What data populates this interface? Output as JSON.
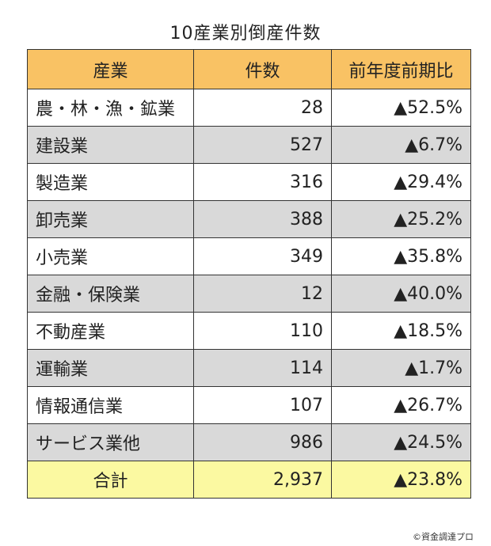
{
  "title": "10産業別倒産件数",
  "chart_data": {
    "type": "table",
    "title": "10産業別倒産件数",
    "columns": [
      "産業",
      "件数",
      "前年度前期比"
    ],
    "rows": [
      {
        "industry": "農・林・漁・鉱業",
        "count": "28",
        "change": "▲52.5%"
      },
      {
        "industry": "建設業",
        "count": "527",
        "change": "▲6.7%"
      },
      {
        "industry": "製造業",
        "count": "316",
        "change": "▲29.4%"
      },
      {
        "industry": "卸売業",
        "count": "388",
        "change": "▲25.2%"
      },
      {
        "industry": "小売業",
        "count": "349",
        "change": "▲35.8%"
      },
      {
        "industry": "金融・保険業",
        "count": "12",
        "change": "▲40.0%"
      },
      {
        "industry": "不動産業",
        "count": "110",
        "change": "▲18.5%"
      },
      {
        "industry": "運輸業",
        "count": "114",
        "change": "▲1.7%"
      },
      {
        "industry": "情報通信業",
        "count": "107",
        "change": "▲26.7%"
      },
      {
        "industry": "サービス業他",
        "count": "986",
        "change": "▲24.5%"
      }
    ],
    "total": {
      "industry": "合計",
      "count": "2,937",
      "change": "▲23.8%"
    }
  },
  "colors": {
    "header_bg": "#f9c264",
    "shaded_row_bg": "#d9d9d9",
    "total_row_bg": "#fbf9a1"
  },
  "credit": "©資金調達プロ"
}
